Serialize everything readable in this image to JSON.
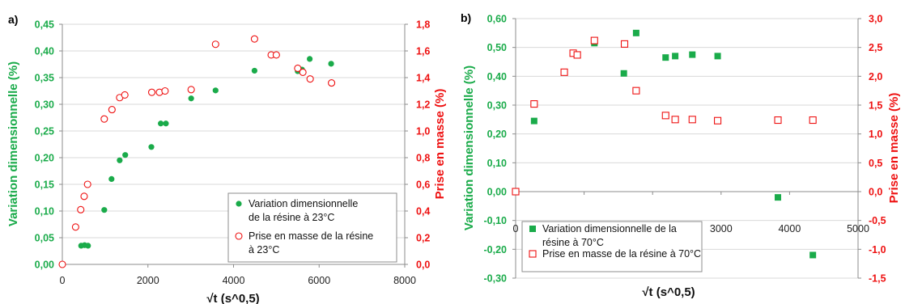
{
  "chart_data": [
    {
      "panel_label": "a)",
      "type": "scatter",
      "xlabel": "√t (s^0,5)",
      "ylabel_left": "Variation dimensionnelle (%)",
      "ylabel_right": "Prise en masse (%)",
      "xlim": [
        0,
        8000
      ],
      "ylim_left": [
        0,
        0.45
      ],
      "ylim_right": [
        0,
        1.8
      ],
      "x_ticks": [
        "0",
        "2000",
        "4000",
        "6000",
        "8000"
      ],
      "y_left_ticks": [
        "0,00",
        "0,05",
        "0,10",
        "0,15",
        "0,20",
        "0,25",
        "0,30",
        "0,35",
        "0,40",
        "0,45"
      ],
      "y_right_ticks": [
        "0,0",
        "0,2",
        "0,4",
        "0,6",
        "0,8",
        "1,0",
        "1,2",
        "1,4",
        "1,6",
        "1,8"
      ],
      "colors": {
        "left": "#1aab4a",
        "right": "#ee1111"
      },
      "legend_position": "bottom-right",
      "series": [
        {
          "name": "Variation dimensionnelle\nde la résine à 23°C",
          "axis": "left",
          "marker": "filled-circle",
          "color": "#1aab4a",
          "x": [
            0,
            440,
            520,
            600,
            980,
            1150,
            1340,
            1470,
            2080,
            2300,
            2420,
            3010,
            3580,
            4490,
            4900,
            5500,
            5600,
            5780,
            6280
          ],
          "y": [
            0.0,
            0.035,
            0.036,
            0.035,
            0.102,
            0.16,
            0.195,
            0.205,
            0.22,
            0.264,
            0.264,
            0.311,
            0.326,
            0.363,
            0.392,
            0.362,
            0.365,
            0.385,
            0.376
          ]
        },
        {
          "name": "Prise en masse de la résine\nà 23°C",
          "axis": "right",
          "marker": "open-circle",
          "color": "#ee1111",
          "x": [
            0,
            310,
            430,
            510,
            590,
            980,
            1160,
            1340,
            1460,
            2090,
            2270,
            2400,
            3010,
            3580,
            4490,
            4880,
            5000,
            5500,
            5620,
            5790,
            6290
          ],
          "y": [
            0.0,
            0.28,
            0.41,
            0.51,
            0.6,
            1.09,
            1.16,
            1.25,
            1.27,
            1.29,
            1.29,
            1.3,
            1.31,
            1.65,
            1.69,
            1.57,
            1.57,
            1.47,
            1.44,
            1.39,
            1.36
          ]
        }
      ]
    },
    {
      "panel_label": "b)",
      "type": "scatter",
      "xlabel": "√t (s^0,5)",
      "ylabel_left": "Variation dimensionnelle (%)",
      "ylabel_right": "Prise en masse (%)",
      "xlim": [
        0,
        5000
      ],
      "ylim_left": [
        -0.3,
        0.6
      ],
      "ylim_right": [
        -1.5,
        3.0
      ],
      "x_ticks": [
        "0",
        "1000",
        "2000",
        "3000",
        "4000",
        "5000"
      ],
      "y_left_ticks": [
        "-0,30",
        "-0,20",
        "-0,10",
        "0,00",
        "0,10",
        "0,20",
        "0,30",
        "0,40",
        "0,50",
        "0,60"
      ],
      "y_right_ticks": [
        "-1,5",
        "-1,0",
        "-0,5",
        "0,0",
        "0,5",
        "1,0",
        "1,5",
        "2,0",
        "2,5",
        "3,0"
      ],
      "colors": {
        "left": "#1aab4a",
        "right": "#ee1111"
      },
      "legend_position": "bottom-left",
      "series": [
        {
          "name": "Variation dimensionnelle de la\nrésine à 70°C",
          "axis": "left",
          "marker": "filled-square",
          "color": "#1aab4a",
          "x": [
            0,
            270,
            900,
            1150,
            1580,
            1760,
            2190,
            2330,
            2580,
            2950,
            3830,
            4340
          ],
          "y": [
            0.0,
            0.245,
            0.475,
            0.515,
            0.41,
            0.55,
            0.465,
            0.47,
            0.475,
            0.47,
            -0.02,
            -0.22
          ]
        },
        {
          "name": "Prise en masse de la résine à 70°C",
          "axis": "right",
          "marker": "open-square",
          "color": "#ee1111",
          "x": [
            0,
            270,
            710,
            840,
            900,
            1150,
            1590,
            1760,
            2190,
            2330,
            2580,
            2950,
            3830,
            4340
          ],
          "y": [
            0.0,
            1.52,
            2.07,
            2.4,
            2.37,
            2.62,
            2.56,
            1.75,
            1.32,
            1.25,
            1.25,
            1.23,
            1.24,
            1.24
          ]
        }
      ]
    }
  ]
}
